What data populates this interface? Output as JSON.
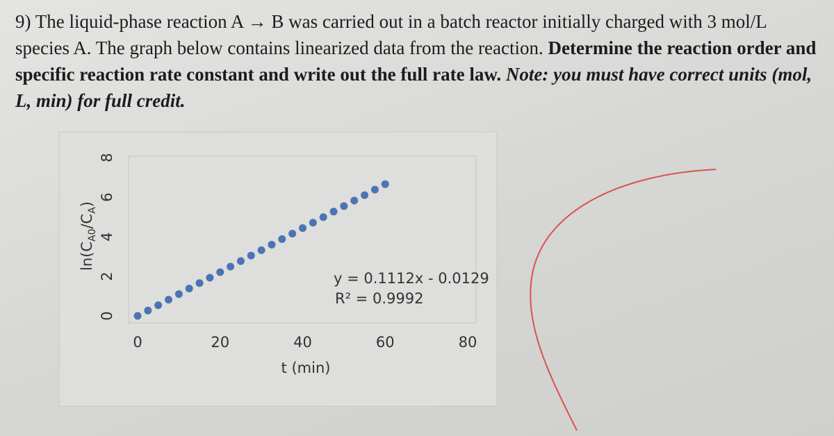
{
  "question": {
    "number": "9)",
    "text": "The liquid-phase reaction A → B was carried out in a batch reactor initially charged with 3 mol/L species A. The graph below contains linearized data from the reaction.",
    "bold": "Determine the reaction order and specific reaction rate constant and write out the full rate law.",
    "italic": "Note: you must have correct units (mol, L, min) for full credit."
  },
  "chart_data": {
    "type": "scatter",
    "color": "#4a74b4",
    "ylabel": [
      "ln(C",
      "A0",
      "/C",
      "A",
      ")"
    ],
    "xlabel": "t (min)",
    "annotations": [
      "y = 0.1112x - 0.0129",
      "R² = 0.9992"
    ],
    "x": [
      0,
      2.5,
      5,
      7.5,
      10,
      12.5,
      15,
      17.5,
      20,
      22.5,
      25,
      27.5,
      30,
      32.5,
      35,
      37.5,
      40,
      42.5,
      45,
      47.5,
      50,
      52.5,
      55,
      57.5,
      60
    ],
    "values": [
      0,
      0.27,
      0.54,
      0.82,
      1.1,
      1.38,
      1.66,
      1.93,
      2.21,
      2.49,
      2.77,
      3.05,
      3.32,
      3.6,
      3.88,
      4.16,
      4.44,
      4.71,
      4.99,
      5.27,
      5.55,
      5.83,
      6.1,
      6.38,
      6.66
    ],
    "xlim": [
      0,
      80
    ],
    "ylim": [
      0,
      8
    ],
    "xticks": [
      0,
      20,
      40,
      60,
      80
    ],
    "yticks": [
      0,
      2,
      4,
      6,
      8
    ],
    "grid": false
  }
}
